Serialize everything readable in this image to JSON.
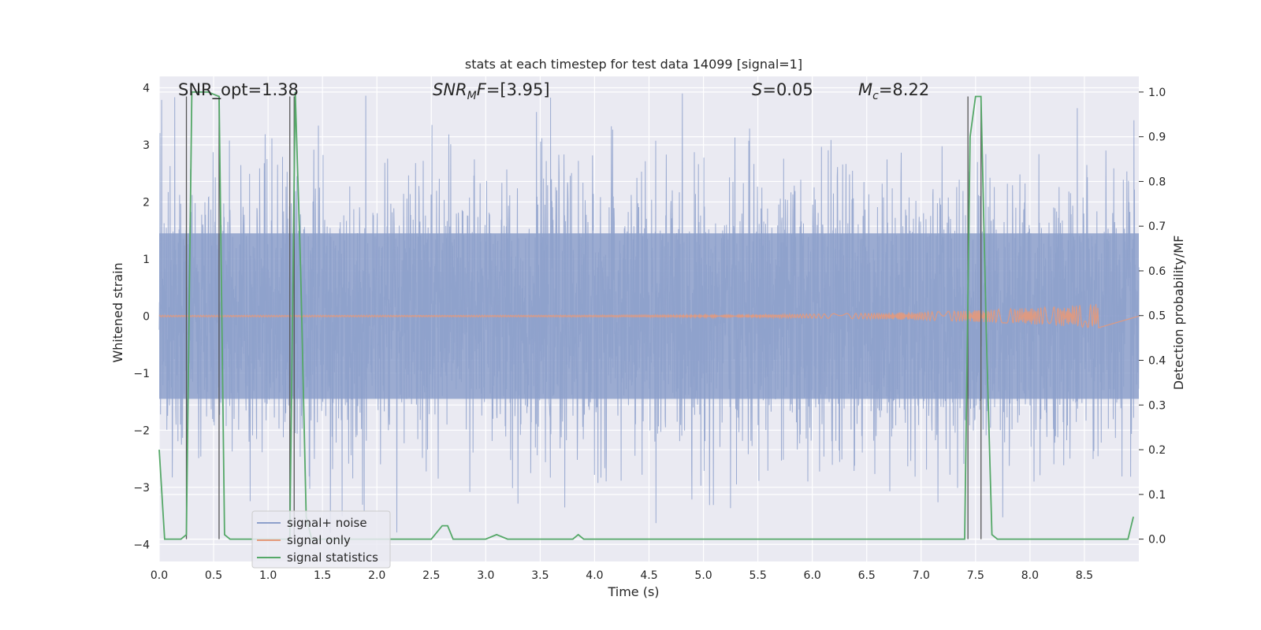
{
  "chart_data": {
    "type": "line",
    "title": "stats at each timestep for test data 14099 [signal=1]",
    "xlabel": "Time (s)",
    "ylabel": "Whitened strain",
    "ylabel_right": "Detection probability/MF",
    "xlim": [
      0,
      9.0
    ],
    "ylim": [
      -4.3,
      4.2
    ],
    "ylim_right": [
      -0.05,
      1.035
    ],
    "x_ticks": [
      0.0,
      0.5,
      1.0,
      1.5,
      2.0,
      2.5,
      3.0,
      3.5,
      4.0,
      4.5,
      5.0,
      5.5,
      6.0,
      6.5,
      7.0,
      7.5,
      8.0,
      8.5
    ],
    "x_tick_labels": [
      "0.0",
      "0.5",
      "1.0",
      "1.5",
      "2.0",
      "2.5",
      "3.0",
      "3.5",
      "4.0",
      "4.5",
      "5.0",
      "5.5",
      "6.0",
      "6.5",
      "7.0",
      "7.5",
      "8.0",
      "8.5"
    ],
    "y_ticks": [
      -4,
      -3,
      -2,
      -1,
      0,
      1,
      2,
      3,
      4
    ],
    "y_tick_labels": [
      "−4",
      "−3",
      "−2",
      "−1",
      "0",
      "1",
      "2",
      "3",
      "4"
    ],
    "y_ticks_right": [
      0.0,
      0.1,
      0.2,
      0.3,
      0.4,
      0.5,
      0.6,
      0.7,
      0.8,
      0.9,
      1.0
    ],
    "y_tick_labels_right": [
      "0.0",
      "0.1",
      "0.2",
      "0.3",
      "0.4",
      "0.5",
      "0.6",
      "0.7",
      "0.8",
      "0.9",
      "1.0"
    ],
    "annotations": {
      "snr_opt": "SNR_opt=1.38",
      "snr_mf_prefix": "SNR",
      "snr_mf_sub": "M",
      "snr_mf_suffix": "F",
      "snr_mf_value": "=[3.95]",
      "s_sym": "S",
      "s_value": "=0.05",
      "mc_sym": "M",
      "mc_sub": "c",
      "mc_value": "=8.22"
    },
    "series": [
      {
        "name": "signal+ noise",
        "color": "#8da0cb",
        "axis": "left",
        "description_stat": "whitened strain noise, approx amplitude range -3.8 to 3.9"
      },
      {
        "name": "signal only",
        "color": "#e5997a",
        "axis": "left",
        "chirp_end_time": 8.63,
        "chirp_peak_amplitude": 0.2
      },
      {
        "name": "signal statistics",
        "color": "#55a868",
        "axis": "right",
        "x": [
          0.0,
          0.05,
          0.1,
          0.2,
          0.25,
          0.3,
          0.35,
          0.45,
          0.55,
          0.6,
          0.65,
          0.7,
          0.8,
          0.9,
          1.0,
          1.1,
          1.2,
          1.25,
          1.3,
          1.35,
          1.4,
          1.5,
          1.6,
          1.7,
          1.8,
          1.9,
          2.0,
          2.1,
          2.2,
          2.3,
          2.4,
          2.5,
          2.6,
          2.65,
          2.7,
          2.75,
          2.8,
          2.9,
          3.0,
          3.1,
          3.2,
          3.3,
          3.5,
          3.7,
          3.8,
          3.85,
          3.9,
          4.0,
          4.5,
          5.0,
          5.5,
          6.0,
          6.5,
          7.0,
          7.3,
          7.4,
          7.45,
          7.5,
          7.55,
          7.6,
          7.65,
          7.7,
          7.75,
          7.8,
          7.9,
          8.0,
          8.5,
          8.9,
          8.95
        ],
        "values": [
          0.2,
          0.0,
          0.0,
          0.0,
          0.01,
          1.0,
          1.0,
          1.0,
          0.99,
          0.01,
          0.0,
          0.0,
          0.0,
          0.0,
          0.0,
          0.0,
          0.0,
          1.0,
          0.6,
          0.05,
          0.0,
          0.0,
          0.0,
          0.0,
          0.0,
          0.0,
          0.0,
          0.0,
          0.0,
          0.0,
          0.0,
          0.0,
          0.03,
          0.03,
          0.0,
          0.0,
          0.0,
          0.0,
          0.0,
          0.01,
          0.0,
          0.0,
          0.0,
          0.0,
          0.0,
          0.01,
          0.0,
          0.0,
          0.0,
          0.0,
          0.0,
          0.0,
          0.0,
          0.0,
          0.0,
          0.0,
          0.9,
          0.99,
          0.99,
          0.45,
          0.01,
          0.0,
          0.0,
          0.0,
          0.0,
          0.0,
          0.0,
          0.0,
          0.05
        ]
      }
    ],
    "vertical_lines": [
      {
        "x": 0.25,
        "top": 0.99
      },
      {
        "x": 0.55,
        "top": 0.99
      },
      {
        "x": 1.2,
        "top": 0.99
      },
      {
        "x": 1.24,
        "top": 0.99
      },
      {
        "x": 7.43,
        "top": 0.99
      },
      {
        "x": 7.55,
        "top": 0.99
      }
    ],
    "legend": {
      "placement": "lower-left",
      "entries": [
        {
          "label": "signal+ noise",
          "color": "#8da0cb"
        },
        {
          "label": "signal only",
          "color": "#e5997a"
        },
        {
          "label": "signal statistics",
          "color": "#55a868"
        }
      ]
    },
    "grid": true,
    "style": {
      "axes_bg": "#eaeaf2",
      "grid_color": "#ffffff",
      "text_color": "#262626",
      "vline_color": "#555555"
    }
  }
}
